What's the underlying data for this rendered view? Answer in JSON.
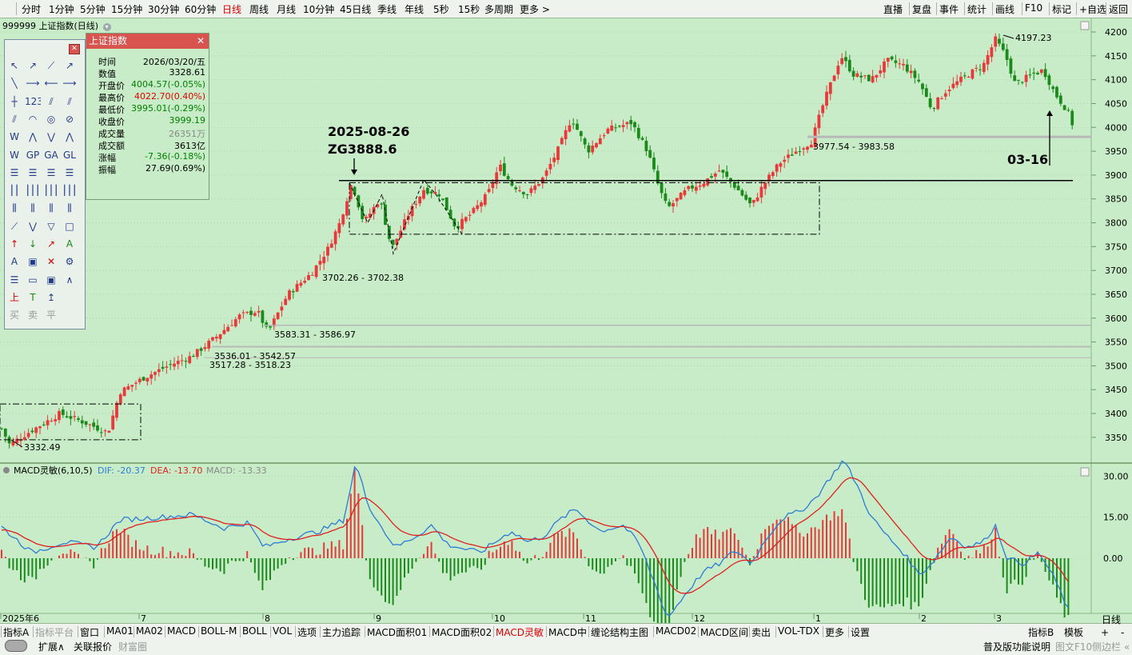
{
  "top_bar": {
    "periods": [
      "分时",
      "1分钟",
      "5分钟",
      "15分钟",
      "30分钟",
      "60分钟",
      "日线",
      "周线",
      "月线",
      "10分钟",
      "45日线",
      "季线",
      "年线",
      "5秒",
      "15秒",
      "多周期",
      "更多 >"
    ],
    "active": "日线",
    "right": [
      "直播",
      "复盘",
      "事件",
      "统计",
      "画线",
      "F10",
      "标记",
      "+自选",
      "返回"
    ]
  },
  "security": {
    "title": "999999 上证指数(日线)",
    "settings_icon": "gear-icon"
  },
  "info_panel": {
    "title": "上证指数",
    "rows": [
      {
        "k": "时间",
        "v": "2026/03/20/五",
        "c": "#000000"
      },
      {
        "k": "数值",
        "v": "3328.61",
        "c": "#000000"
      },
      {
        "k": "开盘价",
        "v": "4004.57(-0.05%)",
        "c": "#008000"
      },
      {
        "k": "最高价",
        "v": "4022.70(0.40%)",
        "c": "#e00000"
      },
      {
        "k": "最低价",
        "v": "3995.01(-0.29%)",
        "c": "#008000"
      },
      {
        "k": "收盘价",
        "v": "3999.19",
        "c": "#008000"
      },
      {
        "k": "成交量",
        "v": "26351万",
        "c": "#888888"
      },
      {
        "k": "成交额",
        "v": "3613亿",
        "c": "#000000"
      },
      {
        "k": "涨幅",
        "v": "-7.36(-0.18%)",
        "c": "#008000"
      },
      {
        "k": "振幅",
        "v": "27.69(0.69%)",
        "c": "#000000"
      }
    ]
  },
  "toolbox": {
    "labels": [
      "↖",
      "↗",
      "⟋",
      "↗",
      "╲",
      "⟶",
      "⟵",
      "⟶",
      "┼",
      "123",
      "⫽",
      "⫽",
      "⫽",
      "◠",
      "◎",
      "⊘",
      "W",
      "⋀",
      "⋁",
      "⋀",
      "W",
      "GP",
      "GA",
      "GL",
      "☰",
      "☰",
      "☰",
      "☰",
      "⎮⎮",
      "⎮⎮⎮",
      "⎮⎮⎮",
      "⎮⎮⎮",
      "⫼",
      "⫼",
      "⫼",
      "⫼",
      "⟋",
      "⋁",
      "▽",
      "□",
      "↑",
      "↓",
      "↗",
      "A",
      "A",
      "▣",
      "✕",
      "⚙",
      "☰",
      "▭",
      "▣",
      "∧",
      "上",
      "T",
      "↥",
      "",
      "买",
      "卖",
      "平",
      ""
    ]
  },
  "chart": {
    "y_ticks": [
      "4200",
      "4150",
      "4100",
      "4050",
      "4000",
      "3950",
      "3900",
      "3850",
      "3800",
      "3750",
      "3700",
      "3650",
      "3600",
      "3550",
      "3500",
      "3450",
      "3400",
      "3350"
    ],
    "macd_ticks": [
      "30.00",
      "15.00",
      "0.00"
    ],
    "x_labels": [
      "2025年6",
      "7",
      "8",
      "9",
      "10",
      "11",
      "12",
      "1",
      "2",
      "3"
    ],
    "annotations": {
      "date_label": "2025-08-26",
      "zg_label": "ZG3888.6",
      "high_label": "4197.23",
      "low_label": "3332.49",
      "range1": "3977.54 - 3983.58",
      "range2": "3702.26 - 3702.38",
      "range3": "3583.31 - 3586.97",
      "range4": "3536.01 - 3542.57",
      "range5": "3517.28 - 3518.23",
      "mark_date": "03-16"
    },
    "macd_title": "MACD灵敏(6,10,5)",
    "macd_dif": "DIF: -20.37",
    "macd_dea": "DEA: -13.70",
    "macd_val": "MACD: -13.33",
    "colors": {
      "up": "#e8383a",
      "down": "#1a8a1a",
      "dif": "#2d7bd6",
      "dea": "#e02020",
      "axis": "#8ab88a"
    }
  },
  "bottom_bar": {
    "row1": [
      "指标A",
      "指标平台",
      "窗口",
      "MA01",
      "MA02",
      "MACD",
      "BOLL-M",
      "BOLL",
      "VOL",
      "选项",
      "主力追踪",
      "MACD面积01",
      "MACD面积02",
      "MACD灵敏",
      "MACD中",
      "缠论结构主图",
      "MACD02",
      "MACD区间",
      "卖出",
      "VOL-TDX",
      "更多",
      "设置"
    ],
    "row1_active": "MACD灵敏",
    "row1_right": [
      "指标B",
      "模板",
      "日线",
      "+",
      "-"
    ],
    "row2": [
      "扩展∧",
      "关联报价",
      "财富圈"
    ],
    "row2_right": [
      "普及版功能说明",
      "图文F10",
      "侧边栏 «"
    ]
  }
}
